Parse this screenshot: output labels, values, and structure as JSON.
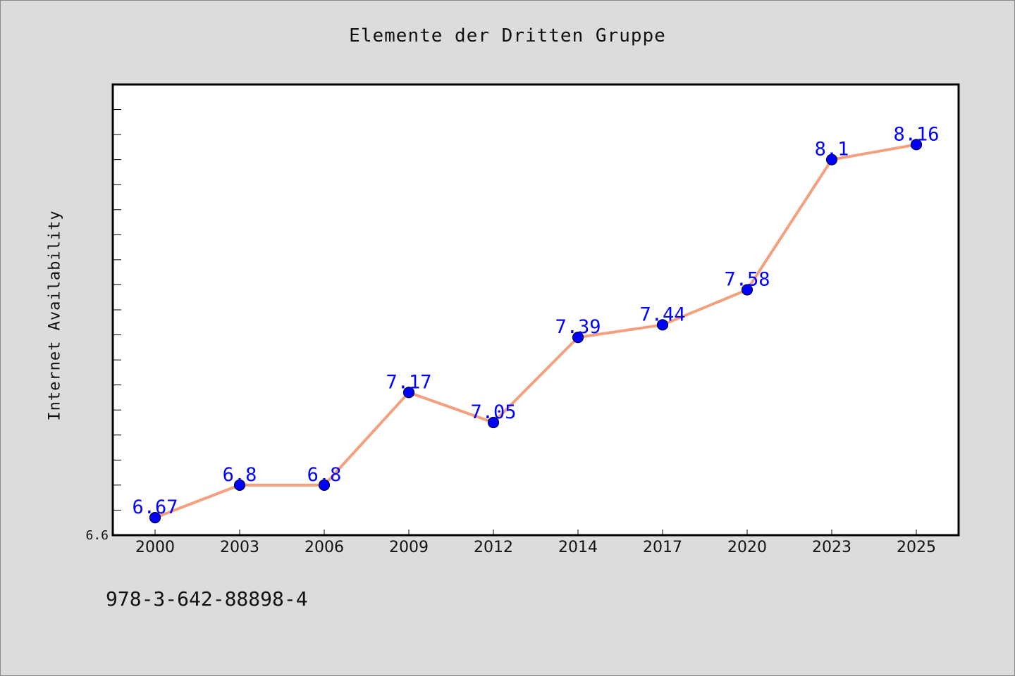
{
  "chart_data": {
    "type": "line",
    "title": "Elemente der Dritten Gruppe",
    "ylabel": "Internet Availability",
    "xlabel": "",
    "categories": [
      "2000",
      "2003",
      "2006",
      "2009",
      "2012",
      "2014",
      "2017",
      "2020",
      "2023",
      "2025"
    ],
    "series": [
      {
        "values": [
          6.67,
          6.8,
          6.8,
          7.17,
          7.05,
          7.39,
          7.44,
          7.58,
          8.1,
          8.16
        ],
        "value_labels": [
          "6.67",
          "6.8",
          "6.8",
          "7.17",
          "7.05",
          "7.39",
          "7.44",
          "7.58",
          "8.1",
          "8.16"
        ]
      }
    ],
    "ylim": [
      6.6,
      8.4
    ],
    "y_tick_labels": [
      "6.6"
    ],
    "grid": false,
    "legend": "none",
    "colors": {
      "line": "#f4a07e",
      "marker_fill": "#0000ff",
      "marker_edge": "#000033",
      "data_label": "#0000ff",
      "plot_background": "#ffffff",
      "figure_background": "#dcdcdc"
    }
  },
  "footer": {
    "isbn": "978-3-642-88898-4"
  }
}
